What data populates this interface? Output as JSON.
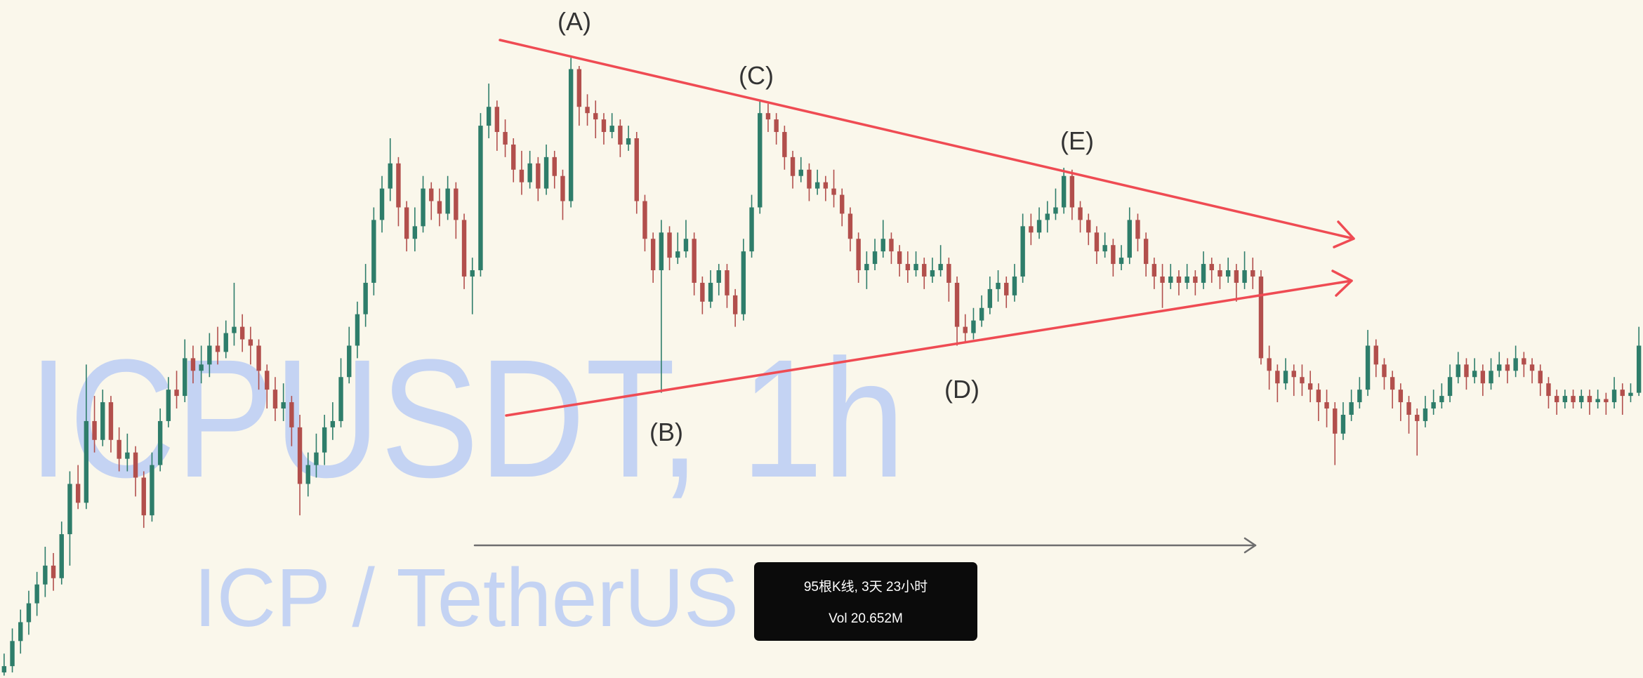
{
  "chart_data": {
    "type": "candlestick",
    "title": "ICPUSDT, 1h",
    "subtitle": "ICP / TetherUS",
    "annotations": [
      "(A)",
      "(B)",
      "(C)",
      "(D)",
      "(E)"
    ],
    "measure": {
      "range": "95根K线, 3天 23小时",
      "volume": "Vol 20.652M"
    },
    "colors": {
      "up": "#2e7d6a",
      "down": "#b24f4c",
      "trendlines": "#ef4b53",
      "measure_arrow": "#6e6e6e",
      "watermark": "#c4d3f3",
      "background": "#faf7eb"
    },
    "ohlc": [
      [
        3,
        6,
        2.5,
        4
      ],
      [
        4,
        10,
        3,
        8
      ],
      [
        8,
        13,
        6,
        11
      ],
      [
        11,
        16,
        9,
        14
      ],
      [
        14,
        19,
        12,
        17
      ],
      [
        17,
        23,
        15,
        20
      ],
      [
        20,
        22,
        16,
        18
      ],
      [
        18,
        27,
        17,
        25
      ],
      [
        25,
        35,
        20,
        33
      ],
      [
        33,
        36,
        29,
        30
      ],
      [
        30,
        52,
        29,
        43
      ],
      [
        43,
        47,
        38,
        40
      ],
      [
        40,
        48,
        39,
        46
      ],
      [
        46,
        47,
        38,
        40
      ],
      [
        40,
        42,
        35,
        37
      ],
      [
        37,
        41,
        35,
        38
      ],
      [
        38,
        39,
        31,
        34
      ],
      [
        34,
        35,
        26,
        28
      ],
      [
        28,
        38,
        27,
        36
      ],
      [
        36,
        45,
        35,
        43
      ],
      [
        43,
        50,
        42,
        48
      ],
      [
        48,
        51,
        45,
        47
      ],
      [
        47,
        56,
        46,
        53
      ],
      [
        53,
        55,
        49,
        51
      ],
      [
        51,
        55,
        49,
        52
      ],
      [
        52,
        57,
        50,
        55
      ],
      [
        55,
        58,
        52,
        54
      ],
      [
        54,
        59,
        53,
        57
      ],
      [
        57,
        65,
        55,
        58
      ],
      [
        58,
        60,
        54,
        56
      ],
      [
        56,
        58,
        52,
        55
      ],
      [
        55,
        56,
        48,
        51
      ],
      [
        51,
        52,
        45,
        48
      ],
      [
        48,
        50,
        43,
        45
      ],
      [
        45,
        49,
        43,
        46
      ],
      [
        46,
        47,
        39,
        42
      ],
      [
        42,
        44,
        28,
        33
      ],
      [
        33,
        38,
        31,
        36
      ],
      [
        36,
        41,
        34,
        38
      ],
      [
        38,
        44,
        36,
        42
      ],
      [
        42,
        46,
        40,
        43
      ],
      [
        43,
        53,
        42,
        50
      ],
      [
        50,
        58,
        49,
        55
      ],
      [
        55,
        62,
        53,
        60
      ],
      [
        60,
        68,
        58,
        65
      ],
      [
        65,
        77,
        63,
        75
      ],
      [
        75,
        82,
        73,
        80
      ],
      [
        80,
        88,
        78,
        84
      ],
      [
        84,
        85,
        74,
        77
      ],
      [
        77,
        78,
        70,
        72
      ],
      [
        72,
        77,
        70,
        74
      ],
      [
        74,
        82,
        73,
        80
      ],
      [
        80,
        81,
        75,
        78
      ],
      [
        78,
        80,
        74,
        76
      ],
      [
        76,
        82,
        75,
        80
      ],
      [
        80,
        81,
        72,
        75
      ],
      [
        75,
        76,
        64,
        66
      ],
      [
        66,
        69,
        60,
        67
      ],
      [
        67,
        92,
        66,
        90
      ],
      [
        90,
        96.7,
        88,
        93
      ],
      [
        93,
        94,
        86,
        89
      ],
      [
        89,
        91,
        85,
        87
      ],
      [
        87,
        88,
        81,
        83
      ],
      [
        83,
        86,
        79,
        81
      ],
      [
        81,
        86,
        80,
        84
      ],
      [
        84,
        85,
        78,
        80
      ],
      [
        80,
        87,
        79,
        85
      ],
      [
        85,
        86,
        80,
        82
      ],
      [
        82,
        83,
        75,
        78
      ],
      [
        78,
        100.8,
        77,
        99
      ],
      [
        99,
        99.5,
        90,
        93
      ],
      [
        93,
        95,
        90,
        92
      ],
      [
        92,
        94,
        88,
        91
      ],
      [
        91,
        92,
        87,
        89
      ],
      [
        89,
        92,
        88,
        90
      ],
      [
        90,
        91,
        85,
        87
      ],
      [
        87,
        90,
        86,
        88
      ],
      [
        88,
        89,
        76,
        78
      ],
      [
        78,
        79,
        70,
        72
      ],
      [
        72,
        73,
        65,
        67
      ],
      [
        67,
        75,
        47.5,
        73
      ],
      [
        73,
        74,
        67,
        69
      ],
      [
        69,
        73,
        68,
        70
      ],
      [
        70,
        75,
        69,
        72
      ],
      [
        72,
        73,
        63,
        65
      ],
      [
        65,
        66,
        60,
        62
      ],
      [
        62,
        67,
        61,
        65
      ],
      [
        65,
        68,
        63,
        67
      ],
      [
        67,
        68,
        61,
        63
      ],
      [
        63,
        64,
        58,
        60
      ],
      [
        60,
        72,
        59,
        70
      ],
      [
        70,
        79,
        69,
        77
      ],
      [
        77,
        94.2,
        76,
        92
      ],
      [
        92,
        93.5,
        89,
        91
      ],
      [
        91,
        92,
        87,
        89
      ],
      [
        89,
        90,
        83,
        85
      ],
      [
        85,
        86,
        80,
        82
      ],
      [
        82,
        85,
        81,
        83
      ],
      [
        83,
        84,
        78,
        80
      ],
      [
        80,
        83,
        79,
        81
      ],
      [
        81,
        82,
        78,
        80
      ],
      [
        80,
        83,
        77,
        79
      ],
      [
        79,
        80,
        74,
        76
      ],
      [
        76,
        77,
        70,
        72
      ],
      [
        72,
        73,
        65,
        67
      ],
      [
        67,
        70,
        64,
        68
      ],
      [
        68,
        72,
        67,
        70
      ],
      [
        70,
        75,
        69,
        72
      ],
      [
        72,
        73,
        68,
        70
      ],
      [
        70,
        71,
        66,
        68
      ],
      [
        68,
        70,
        65,
        67
      ],
      [
        67,
        70,
        66,
        68
      ],
      [
        68,
        69,
        64,
        66
      ],
      [
        66,
        69,
        65,
        67
      ],
      [
        67,
        71,
        66,
        68
      ],
      [
        68,
        69,
        62,
        65
      ],
      [
        65,
        66,
        55,
        58
      ],
      [
        58,
        60,
        55.5,
        57
      ],
      [
        57,
        61,
        56,
        59
      ],
      [
        59,
        63,
        58,
        61
      ],
      [
        61,
        66,
        60,
        64
      ],
      [
        64,
        67,
        62,
        65
      ],
      [
        65,
        66,
        61,
        63
      ],
      [
        63,
        68,
        62,
        66
      ],
      [
        66,
        76,
        65,
        74
      ],
      [
        74,
        76,
        71,
        73
      ],
      [
        73,
        77,
        72,
        75
      ],
      [
        75,
        78,
        73,
        76
      ],
      [
        76,
        80,
        75,
        77
      ],
      [
        77,
        83.3,
        76,
        82
      ],
      [
        82,
        83,
        75,
        77
      ],
      [
        77,
        78,
        73,
        75
      ],
      [
        75,
        76,
        71,
        73
      ],
      [
        73,
        74,
        68,
        70
      ],
      [
        70,
        73,
        69,
        71
      ],
      [
        71,
        72,
        66,
        68
      ],
      [
        68,
        71,
        67,
        69
      ],
      [
        69,
        77,
        68,
        75
      ],
      [
        75,
        76,
        70,
        72
      ],
      [
        72,
        73,
        66,
        68
      ],
      [
        68,
        69,
        64,
        66
      ],
      [
        66,
        68,
        61,
        65
      ],
      [
        65,
        68,
        64,
        66
      ],
      [
        66,
        67,
        63,
        65
      ],
      [
        65,
        68,
        64,
        66
      ],
      [
        66,
        67,
        63,
        65
      ],
      [
        65,
        70,
        64,
        68
      ],
      [
        68,
        69,
        65,
        67
      ],
      [
        67,
        68,
        64,
        66
      ],
      [
        66,
        69,
        65,
        67
      ],
      [
        67,
        68,
        62,
        65
      ],
      [
        65,
        70,
        64,
        67
      ],
      [
        67,
        69,
        64,
        66
      ],
      [
        66,
        67,
        52,
        53
      ],
      [
        53,
        55,
        48,
        51
      ],
      [
        51,
        52,
        46,
        49
      ],
      [
        49,
        53,
        48,
        51
      ],
      [
        51,
        52,
        47,
        50
      ],
      [
        50,
        52,
        47,
        49
      ],
      [
        49,
        51,
        46,
        48
      ],
      [
        48,
        49,
        43,
        46
      ],
      [
        46,
        48,
        42,
        45
      ],
      [
        45,
        46,
        36,
        41
      ],
      [
        41,
        46,
        40,
        44
      ],
      [
        44,
        48,
        43,
        46
      ],
      [
        46,
        50,
        45,
        48
      ],
      [
        48,
        57.5,
        47,
        55
      ],
      [
        55,
        56,
        50,
        52
      ],
      [
        52,
        53,
        48,
        50
      ],
      [
        50,
        51,
        45,
        48
      ],
      [
        48,
        49,
        43,
        46
      ],
      [
        46,
        47,
        41,
        44
      ],
      [
        44,
        45,
        37.5,
        43
      ],
      [
        43,
        47,
        42,
        45
      ],
      [
        45,
        48,
        44,
        46
      ],
      [
        46,
        49,
        45,
        47
      ],
      [
        47,
        52,
        46,
        50
      ],
      [
        50,
        54,
        49,
        52
      ],
      [
        52,
        53,
        48,
        50
      ],
      [
        50,
        53,
        49,
        51
      ],
      [
        51,
        52,
        47,
        49
      ],
      [
        49,
        53,
        48,
        51
      ],
      [
        51,
        54,
        50,
        52
      ],
      [
        52,
        53,
        49,
        51
      ],
      [
        51,
        55,
        50,
        53
      ],
      [
        53,
        54,
        50,
        52
      ],
      [
        52,
        53,
        49,
        51
      ],
      [
        51,
        52,
        47,
        49
      ],
      [
        49,
        50,
        45,
        47
      ],
      [
        47,
        48,
        44,
        46
      ],
      [
        46,
        48,
        45,
        47
      ],
      [
        47,
        48,
        45,
        46
      ],
      [
        46,
        48,
        45,
        47
      ],
      [
        47,
        48,
        44,
        46
      ],
      [
        46,
        48,
        45,
        46.5
      ],
      [
        46.5,
        47.5,
        44,
        46
      ],
      [
        46,
        50,
        45,
        48
      ],
      [
        48,
        49,
        44,
        47
      ],
      [
        47,
        49,
        46,
        47.5
      ],
      [
        47.5,
        58,
        47,
        55
      ]
    ]
  }
}
